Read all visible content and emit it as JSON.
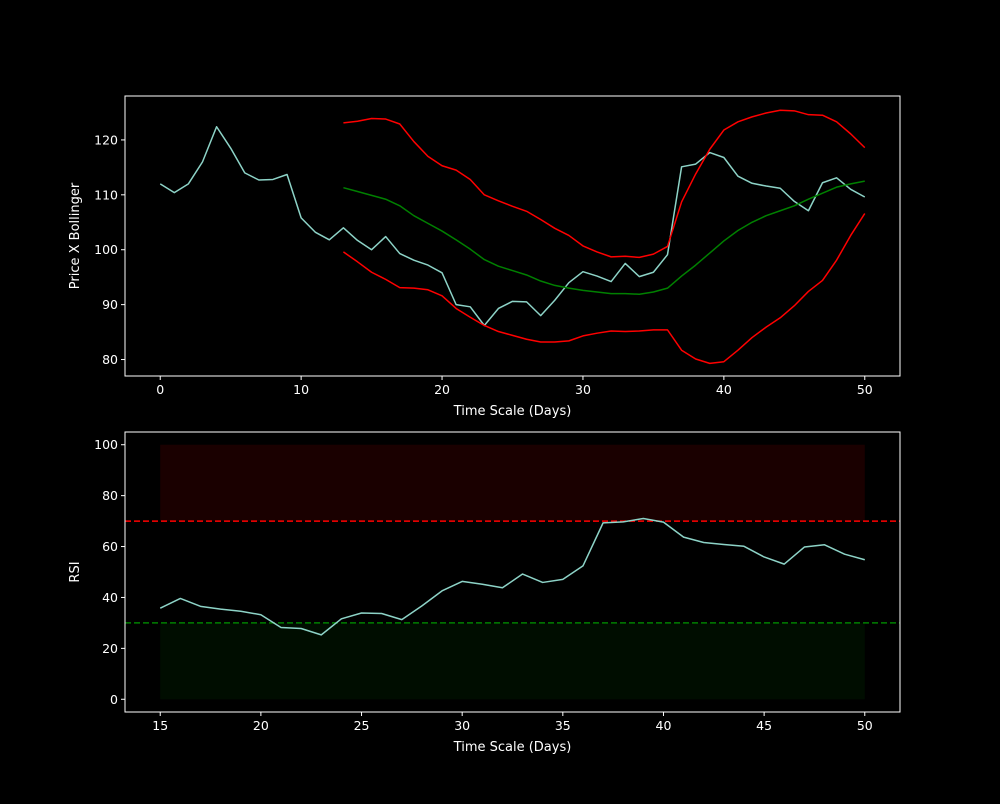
{
  "figure": {
    "background": "#000000",
    "foreground": "#ffffff"
  },
  "chart_data": [
    {
      "type": "line",
      "xlabel": "Time Scale (Days)",
      "ylabel": "Price X Bollinger",
      "xlim": [
        -2.5,
        52.5
      ],
      "ylim": [
        77,
        128
      ],
      "xticks": [
        0,
        10,
        20,
        30,
        40,
        50
      ],
      "yticks": [
        80,
        90,
        100,
        110,
        120
      ],
      "grid": false,
      "series": [
        {
          "color": "#8dd3c7",
          "x": [
            0,
            1,
            2,
            3,
            4,
            5,
            6,
            7,
            8,
            9,
            10,
            11,
            12,
            13,
            14,
            15,
            16,
            17,
            18,
            19,
            20,
            21,
            22,
            23,
            24,
            25,
            26,
            27,
            28,
            29,
            30,
            31,
            32,
            33,
            34,
            35,
            36,
            37,
            38,
            39,
            40,
            41,
            42,
            43,
            44,
            45,
            46,
            47,
            48,
            49,
            50
          ],
          "y": [
            112.0,
            110.4,
            112.0,
            116.0,
            122.4,
            118.5,
            114.0,
            112.7,
            112.8,
            113.7,
            105.8,
            103.2,
            101.8,
            104.0,
            101.7,
            100.0,
            102.4,
            99.3,
            98.1,
            97.2,
            95.8,
            90.0,
            89.6,
            86.2,
            89.3,
            90.6,
            90.5,
            88.0,
            90.8,
            94.0,
            96.0,
            95.2,
            94.2,
            97.5,
            95.1,
            95.9,
            99.1,
            115.1,
            115.6,
            117.7,
            116.8,
            113.4,
            112.1,
            111.6,
            111.2,
            108.8,
            107.1,
            112.2,
            113.1,
            111.0,
            109.6
          ]
        },
        {
          "color": "#ff0000",
          "x": [
            13,
            14,
            15,
            16,
            17,
            18,
            19,
            20,
            21,
            22,
            23,
            24,
            25,
            26,
            27,
            28,
            29,
            30,
            31,
            32,
            33,
            34,
            35,
            36,
            37,
            38,
            39,
            40,
            41,
            42,
            43,
            44,
            45,
            46,
            47,
            48,
            49,
            50
          ],
          "y": [
            123.1,
            123.4,
            123.9,
            123.8,
            122.9,
            119.7,
            117.0,
            115.3,
            114.5,
            112.8,
            110.0,
            108.9,
            107.9,
            107.0,
            105.5,
            103.9,
            102.6,
            100.7,
            99.6,
            98.7,
            98.8,
            98.6,
            99.2,
            100.6,
            108.7,
            113.8,
            118.3,
            121.8,
            123.3,
            124.2,
            124.9,
            125.4,
            125.3,
            124.6,
            124.5,
            123.3,
            121.1,
            118.6
          ]
        },
        {
          "color": "#008000",
          "x": [
            13,
            14,
            15,
            16,
            17,
            18,
            19,
            20,
            21,
            22,
            23,
            24,
            25,
            26,
            27,
            28,
            29,
            30,
            31,
            32,
            33,
            34,
            35,
            36,
            37,
            38,
            39,
            40,
            41,
            42,
            43,
            44,
            45,
            46,
            47,
            48,
            49,
            50
          ],
          "y": [
            111.3,
            110.6,
            109.9,
            109.2,
            108.0,
            106.2,
            104.8,
            103.4,
            101.8,
            100.1,
            98.2,
            97.0,
            96.2,
            95.4,
            94.3,
            93.5,
            93.0,
            92.6,
            92.3,
            92.0,
            92.0,
            91.9,
            92.3,
            93.0,
            95.2,
            97.2,
            99.4,
            101.6,
            103.5,
            105.0,
            106.2,
            107.1,
            108.0,
            109.2,
            110.3,
            111.4,
            112.0,
            112.5
          ]
        },
        {
          "color": "#ff0000",
          "x": [
            13,
            14,
            15,
            16,
            17,
            18,
            19,
            20,
            21,
            22,
            23,
            24,
            25,
            26,
            27,
            28,
            29,
            30,
            31,
            32,
            33,
            34,
            35,
            36,
            37,
            38,
            39,
            40,
            41,
            42,
            43,
            44,
            45,
            46,
            47,
            48,
            49,
            50
          ],
          "y": [
            99.6,
            97.8,
            95.9,
            94.6,
            93.1,
            93.0,
            92.7,
            91.6,
            89.3,
            87.7,
            86.2,
            85.1,
            84.4,
            83.7,
            83.2,
            83.2,
            83.4,
            84.3,
            84.8,
            85.2,
            85.1,
            85.2,
            85.4,
            85.4,
            81.7,
            80.1,
            79.3,
            79.6,
            81.7,
            84.0,
            85.9,
            87.6,
            89.8,
            92.4,
            94.4,
            98.1,
            102.6,
            106.6
          ]
        }
      ]
    },
    {
      "type": "line",
      "xlabel": "Time Scale (Days)",
      "ylabel": "RSI",
      "xlim": [
        13.25,
        51.75
      ],
      "ylim": [
        -5,
        105
      ],
      "xticks": [
        15,
        20,
        25,
        30,
        35,
        40,
        45,
        50
      ],
      "yticks": [
        0,
        20,
        40,
        60,
        80,
        100
      ],
      "grid": false,
      "bands": [
        {
          "x": [
            15,
            50
          ],
          "y": [
            70,
            100
          ],
          "color": "#ff0000",
          "opacity": 0.1
        },
        {
          "x": [
            15,
            50
          ],
          "y": [
            0,
            30
          ],
          "color": "#008000",
          "opacity": 0.1
        }
      ],
      "hlines": [
        {
          "y": 70,
          "color": "#ff0000",
          "style": "dashed"
        },
        {
          "y": 30,
          "color": "#008000",
          "style": "dashed"
        }
      ],
      "series": [
        {
          "color": "#8dd3c7",
          "x": [
            15,
            16,
            17,
            18,
            19,
            20,
            21,
            22,
            23,
            24,
            25,
            26,
            27,
            28,
            29,
            30,
            31,
            32,
            33,
            34,
            35,
            36,
            37,
            38,
            39,
            40,
            41,
            42,
            43,
            44,
            45,
            46,
            47,
            48,
            49,
            50
          ],
          "y": [
            35.8,
            39.6,
            36.5,
            35.4,
            34.6,
            33.2,
            28.2,
            27.8,
            25.3,
            31.6,
            33.9,
            33.7,
            31.3,
            36.7,
            42.6,
            46.3,
            45.2,
            43.8,
            49.2,
            45.9,
            47.1,
            52.4,
            69.3,
            69.7,
            71.0,
            69.6,
            63.7,
            61.6,
            60.8,
            60.1,
            55.9,
            53.1,
            59.8,
            60.7,
            57.0,
            54.8
          ]
        }
      ]
    }
  ]
}
